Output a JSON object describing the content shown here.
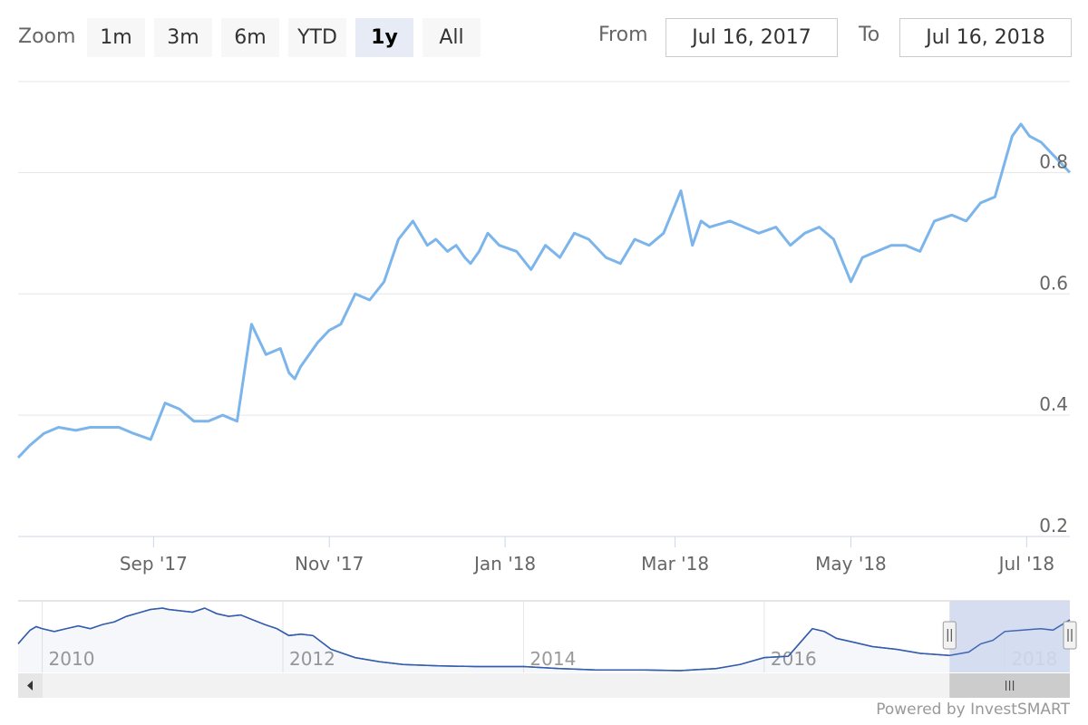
{
  "range_selector": {
    "zoom_label": "Zoom",
    "buttons": [
      {
        "label": "1m",
        "active": false
      },
      {
        "label": "3m",
        "active": false
      },
      {
        "label": "6m",
        "active": false
      },
      {
        "label": "YTD",
        "active": false
      },
      {
        "label": "1y",
        "active": true
      },
      {
        "label": "All",
        "active": false
      }
    ],
    "from_label": "From",
    "from_value": "Jul 16, 2017",
    "to_label": "To",
    "to_value": "Jul 16, 2018"
  },
  "credit": "Powered by InvestSMART",
  "colors": {
    "series": "#7cb5ec",
    "navigator_series": "#335cad",
    "navigator_mask": "#d2d9ee",
    "grid": "#e6e6e6",
    "axis": "#ccd6eb"
  },
  "chart_data": {
    "type": "line",
    "title": "",
    "ylim": [
      0.2,
      0.95
    ],
    "y_ticks": [
      {
        "value": 0.2,
        "label": "0.2"
      },
      {
        "value": 0.4,
        "label": "0.4"
      },
      {
        "value": 0.6,
        "label": "0.6"
      },
      {
        "value": 0.8,
        "label": "0.8"
      }
    ],
    "x_range": [
      "2017-07-16",
      "2018-07-16"
    ],
    "x_ticks": [
      {
        "date": "2017-09-01",
        "label": "Sep '17"
      },
      {
        "date": "2017-11-01",
        "label": "Nov '17"
      },
      {
        "date": "2018-01-01",
        "label": "Jan '18"
      },
      {
        "date": "2018-03-01",
        "label": "Mar '18"
      },
      {
        "date": "2018-05-01",
        "label": "May '18"
      },
      {
        "date": "2018-07-01",
        "label": "Jul '18"
      }
    ],
    "series": [
      {
        "x": [
          "2017-07-16",
          "2017-07-20",
          "2017-07-25",
          "2017-07-30",
          "2017-08-05",
          "2017-08-10",
          "2017-08-15",
          "2017-08-20",
          "2017-08-25",
          "2017-08-31",
          "2017-09-05",
          "2017-09-10",
          "2017-09-15",
          "2017-09-20",
          "2017-09-25",
          "2017-09-30",
          "2017-10-05",
          "2017-10-10",
          "2017-10-15",
          "2017-10-18",
          "2017-10-20",
          "2017-10-22",
          "2017-10-25",
          "2017-10-28",
          "2017-11-01",
          "2017-11-05",
          "2017-11-10",
          "2017-11-15",
          "2017-11-20",
          "2017-11-25",
          "2017-11-30",
          "2017-12-05",
          "2017-12-08",
          "2017-12-12",
          "2017-12-15",
          "2017-12-18",
          "2017-12-20",
          "2017-12-23",
          "2017-12-26",
          "2017-12-30",
          "2018-01-05",
          "2018-01-10",
          "2018-01-15",
          "2018-01-20",
          "2018-01-25",
          "2018-01-30",
          "2018-02-05",
          "2018-02-10",
          "2018-02-15",
          "2018-02-20",
          "2018-02-25",
          "2018-03-03",
          "2018-03-07",
          "2018-03-10",
          "2018-03-13",
          "2018-03-20",
          "2018-03-25",
          "2018-03-30",
          "2018-04-05",
          "2018-04-10",
          "2018-04-15",
          "2018-04-20",
          "2018-04-25",
          "2018-05-01",
          "2018-05-05",
          "2018-05-10",
          "2018-05-15",
          "2018-05-20",
          "2018-05-25",
          "2018-05-30",
          "2018-06-05",
          "2018-06-10",
          "2018-06-15",
          "2018-06-20",
          "2018-06-23",
          "2018-06-26",
          "2018-06-29",
          "2018-07-02",
          "2018-07-06",
          "2018-07-10",
          "2018-07-16"
        ],
        "values": [
          0.33,
          0.35,
          0.37,
          0.38,
          0.375,
          0.38,
          0.38,
          0.38,
          0.37,
          0.36,
          0.42,
          0.41,
          0.39,
          0.39,
          0.4,
          0.39,
          0.55,
          0.5,
          0.51,
          0.47,
          0.46,
          0.48,
          0.5,
          0.52,
          0.54,
          0.55,
          0.6,
          0.59,
          0.62,
          0.69,
          0.72,
          0.68,
          0.69,
          0.67,
          0.68,
          0.66,
          0.65,
          0.67,
          0.7,
          0.68,
          0.67,
          0.64,
          0.68,
          0.66,
          0.7,
          0.69,
          0.66,
          0.65,
          0.69,
          0.68,
          0.7,
          0.77,
          0.68,
          0.72,
          0.71,
          0.72,
          0.71,
          0.7,
          0.71,
          0.68,
          0.7,
          0.71,
          0.69,
          0.62,
          0.66,
          0.67,
          0.68,
          0.68,
          0.67,
          0.72,
          0.73,
          0.72,
          0.75,
          0.76,
          0.81,
          0.86,
          0.88,
          0.86,
          0.85,
          0.83,
          0.8
        ]
      }
    ],
    "navigator": {
      "x_ticks": [
        {
          "year": 2010,
          "label": "2010"
        },
        {
          "year": 2012,
          "label": "2012"
        },
        {
          "year": 2014,
          "label": "2014"
        },
        {
          "year": 2016,
          "label": "2016"
        },
        {
          "year": 2018,
          "label": "2018"
        }
      ],
      "x_range": [
        2009.8,
        2018.54
      ],
      "selected_range": [
        2017.54,
        2018.54
      ],
      "series": [
        {
          "x": [
            2009.8,
            2009.85,
            2009.9,
            2009.95,
            2010.0,
            2010.1,
            2010.2,
            2010.3,
            2010.4,
            2010.5,
            2010.6,
            2010.7,
            2010.8,
            2010.9,
            2011.0,
            2011.05,
            2011.15,
            2011.25,
            2011.35,
            2011.45,
            2011.55,
            2011.65,
            2011.75,
            2011.85,
            2011.95,
            2012.05,
            2012.15,
            2012.25,
            2012.4,
            2012.6,
            2012.8,
            2013.0,
            2013.3,
            2013.6,
            2014.0,
            2014.3,
            2014.6,
            2015.0,
            2015.3,
            2015.6,
            2015.8,
            2016.0,
            2016.2,
            2016.4,
            2016.5,
            2016.6,
            2016.75,
            2016.9,
            2017.1,
            2017.3,
            2017.54,
            2017.7,
            2017.8,
            2017.9,
            2018.0,
            2018.15,
            2018.3,
            2018.4,
            2018.54
          ],
          "values": [
            0.5,
            0.6,
            0.7,
            0.75,
            0.72,
            0.68,
            0.72,
            0.76,
            0.72,
            0.78,
            0.82,
            0.9,
            0.95,
            1.0,
            1.02,
            1.0,
            0.98,
            0.96,
            1.02,
            0.94,
            0.9,
            0.92,
            0.85,
            0.78,
            0.72,
            0.62,
            0.64,
            0.62,
            0.42,
            0.3,
            0.24,
            0.2,
            0.18,
            0.17,
            0.17,
            0.14,
            0.12,
            0.12,
            0.11,
            0.14,
            0.2,
            0.3,
            0.32,
            0.72,
            0.68,
            0.58,
            0.52,
            0.46,
            0.42,
            0.36,
            0.33,
            0.38,
            0.5,
            0.55,
            0.68,
            0.7,
            0.72,
            0.7,
            0.85
          ]
        }
      ]
    }
  }
}
